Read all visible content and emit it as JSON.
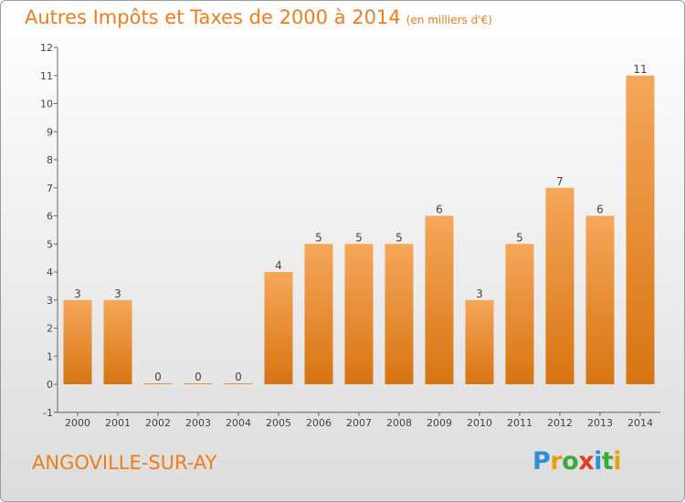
{
  "title": "Autres Impôts et Taxes de 2000 à 2014",
  "subtitle": "(en milliers d'€)",
  "commune": "ANGOVILLE-SUR-AY",
  "logo": {
    "letters": [
      {
        "ch": "P",
        "color": "#2a8fd6"
      },
      {
        "ch": "r",
        "color": "#e8a10c"
      },
      {
        "ch": "o",
        "color": "#3cab3c"
      },
      {
        "ch": "x",
        "color": "#e23b2a"
      },
      {
        "ch": "i",
        "color": "#2a8fd6"
      },
      {
        "ch": "t",
        "color": "#3cab3c"
      },
      {
        "ch": "i",
        "color": "#e8a10c"
      }
    ]
  },
  "colors": {
    "bar_light": "#f5a75a",
    "bar_dark": "#d87412",
    "accent": "#f07c1a"
  },
  "chart_data": {
    "type": "bar",
    "categories": [
      "2000",
      "2001",
      "2002",
      "2003",
      "2004",
      "2005",
      "2006",
      "2007",
      "2008",
      "2009",
      "2010",
      "2011",
      "2012",
      "2013",
      "2014"
    ],
    "values": [
      3,
      3,
      0,
      0,
      0,
      4,
      5,
      5,
      5,
      6,
      3,
      5,
      7,
      6,
      11
    ],
    "ylim": [
      -1,
      12
    ],
    "yticks": [
      -1,
      0,
      1,
      2,
      3,
      4,
      5,
      6,
      7,
      8,
      9,
      10,
      11,
      12
    ],
    "grid": false
  }
}
